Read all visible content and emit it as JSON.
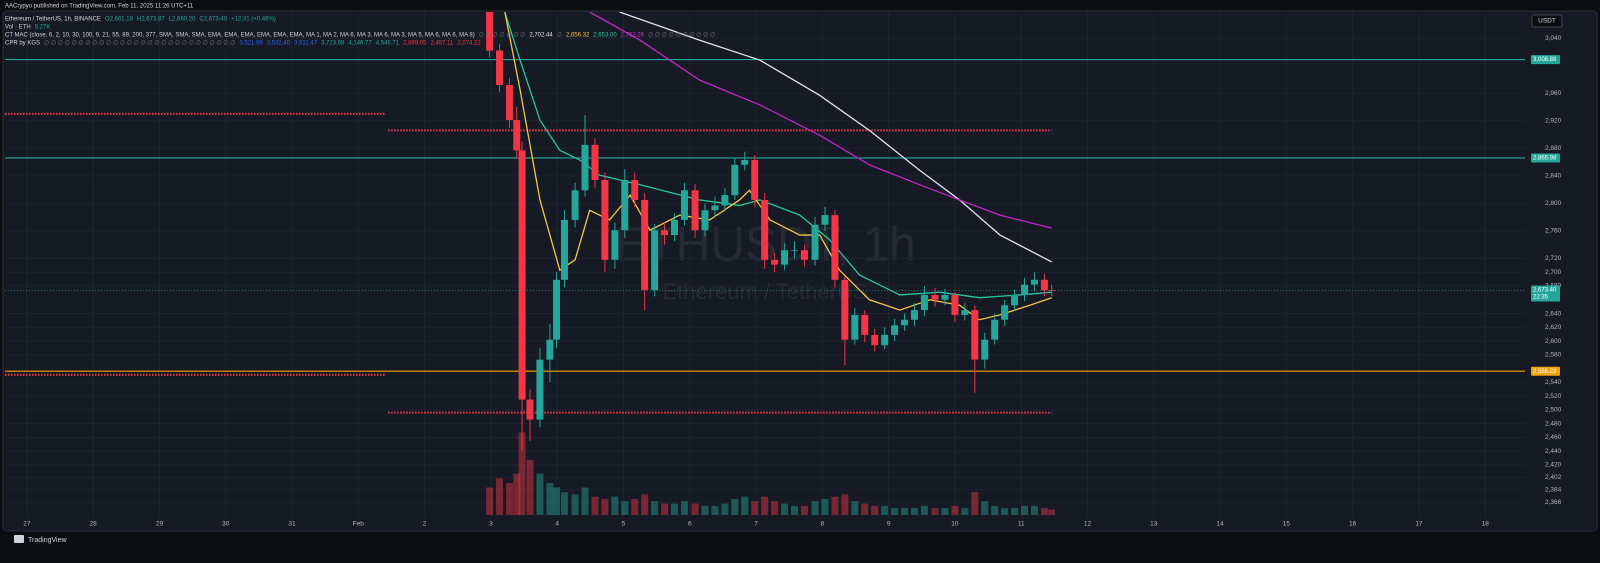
{
  "header": {
    "publisher": "AACrypyo published on TradingView.com, Feb 11, 2025 11:26 UTC+11"
  },
  "legend": [
    [
      {
        "text": "Ethereum / TetherUS, 1h, BINANCE",
        "color": "#d1d4dc"
      },
      {
        "text": "O2,661.19",
        "color": "#26a69a"
      },
      {
        "text": "H2,673.87",
        "color": "#26a69a"
      },
      {
        "text": "L2,660.20",
        "color": "#26a69a"
      },
      {
        "text": "C2,673.40",
        "color": "#26a69a"
      },
      {
        "text": "+12.31 (+0.46%)",
        "color": "#26a69a"
      }
    ],
    [
      {
        "text": "Vol · ETH",
        "color": "#d1d4dc"
      },
      {
        "text": "5.27K",
        "color": "#26a69a"
      }
    ],
    [
      {
        "text": "CT MAC (close, 6, 2, 10, 30, 100, 9, 21, 55, 89, 200, 377, SMA, SMA, SMA, EMA, EMA, EMA, EMA, EMA, EMA, MA 1, MA 2, MA 6, MA 3, MA 6, MA 3, MA 5, MA 6, MA 6, MA 8)",
        "color": "#d1d4dc"
      },
      {
        "text": "∅ ∅ ∅ ∅ ∅ ∅ ∅",
        "color": "#787b86"
      },
      {
        "text": "2,702.44",
        "color": "#e0e3eb"
      },
      {
        "text": "∅",
        "color": "#787b86"
      },
      {
        "text": "2,656.32",
        "color": "#f5c542"
      },
      {
        "text": "2,653.00",
        "color": "#26c6a0"
      },
      {
        "text": "2,752.26",
        "color": "#d62ad6"
      },
      {
        "text": "∅ ∅ ∅ ∅ ∅ ∅ ∅ ∅ ∅ ∅",
        "color": "#787b86"
      }
    ],
    [
      {
        "text": "CPR by KGS",
        "color": "#d1d4dc"
      },
      {
        "text": "∅ ∅ ∅ ∅ ∅ ∅ ∅ ∅ ∅ ∅ ∅ ∅ ∅ ∅ ∅ ∅ ∅ ∅ ∅ ∅ ∅ ∅ ∅ ∅ ∅ ∅ ∅ ∅",
        "color": "#787b86"
      },
      {
        "text": "3,521.96",
        "color": "#2962ff"
      },
      {
        "text": "3,532.40",
        "color": "#2962ff"
      },
      {
        "text": "3,511.47",
        "color": "#2962ff"
      },
      {
        "text": "3,723.68",
        "color": "#26a69a"
      },
      {
        "text": "4,146.77",
        "color": "#26a69a"
      },
      {
        "text": "4,546.71",
        "color": "#26a69a"
      },
      {
        "text": "2,899.05",
        "color": "#f23645"
      },
      {
        "text": "2,497.11",
        "color": "#f23645"
      },
      {
        "text": "2,074.22",
        "color": "#f23645"
      }
    ]
  ],
  "watermark": {
    "symbol": "ETHUSDT, 1h",
    "name": "Ethereum / TetherUS"
  },
  "footer": {
    "brand": "TradingView"
  },
  "chart_data": {
    "type": "candlestick",
    "currency": "USDT",
    "grid": true,
    "up_color": "#26a69a",
    "down_color": "#f23645",
    "x": [
      6.98,
      7.13,
      7.28,
      7.39,
      7.47,
      7.59,
      7.74,
      7.89,
      7.99,
      8.11,
      8.27,
      8.42,
      8.57,
      8.72,
      8.87,
      9.02,
      9.17,
      9.32,
      9.47,
      9.62,
      9.77,
      9.92,
      10.08,
      10.23,
      10.38,
      10.53,
      10.68,
      10.83,
      10.98,
      11.13,
      11.28,
      11.43,
      11.58,
      11.73,
      11.89,
      12.04,
      12.19,
      12.34,
      12.49,
      12.64,
      12.79,
      12.94,
      13.09,
      13.24,
      13.39,
      13.54,
      13.7,
      13.85,
      14.0,
      14.15,
      14.3,
      14.45,
      14.6,
      14.75,
      14.9,
      15.05,
      15.2,
      15.35,
      15.46
    ],
    "open": [
      3080,
      3022,
      2972,
      2921,
      2877,
      2515,
      2486,
      2573,
      2602,
      2689,
      2776,
      2819,
      2885,
      2834,
      2718,
      2761,
      2834,
      2805,
      2674,
      2761,
      2754,
      2776,
      2819,
      2761,
      2790,
      2797,
      2812,
      2856,
      2863,
      2805,
      2718,
      2711,
      2732,
      2732,
      2718,
      2769,
      2783,
      2689,
      2602,
      2638,
      2609,
      2594,
      2609,
      2623,
      2631,
      2645,
      2667,
      2660,
      2667,
      2638,
      2645,
      2573,
      2602,
      2631,
      2652,
      2667,
      2682,
      2689,
      2674
    ],
    "high": [
      3090,
      3032,
      2982,
      2940,
      2890,
      2530,
      2590,
      2625,
      2700,
      2790,
      2830,
      2928,
      2895,
      2845,
      2772,
      2850,
      2845,
      2815,
      2770,
      2772,
      2786,
      2830,
      2828,
      2800,
      2810,
      2822,
      2866,
      2875,
      2870,
      2815,
      2728,
      2742,
      2745,
      2740,
      2780,
      2795,
      2790,
      2695,
      2648,
      2645,
      2618,
      2620,
      2632,
      2640,
      2655,
      2680,
      2677,
      2676,
      2672,
      2655,
      2652,
      2612,
      2640,
      2660,
      2675,
      2692,
      2700,
      2698,
      2682
    ],
    "low": [
      3012,
      2962,
      2910,
      2865,
      2442,
      2455,
      2475,
      2540,
      2590,
      2678,
      2765,
      2810,
      2822,
      2700,
      2705,
      2750,
      2795,
      2645,
      2665,
      2740,
      2745,
      2768,
      2750,
      2752,
      2780,
      2788,
      2805,
      2848,
      2795,
      2705,
      2700,
      2703,
      2720,
      2708,
      2710,
      2760,
      2678,
      2565,
      2595,
      2598,
      2585,
      2588,
      2600,
      2615,
      2622,
      2636,
      2650,
      2652,
      2628,
      2630,
      2525,
      2560,
      2595,
      2622,
      2645,
      2658,
      2672,
      2665,
      2665
    ],
    "close": [
      3022,
      2972,
      2921,
      2877,
      2515,
      2486,
      2573,
      2602,
      2689,
      2776,
      2819,
      2885,
      2834,
      2718,
      2761,
      2834,
      2805,
      2674,
      2761,
      2754,
      2776,
      2819,
      2761,
      2790,
      2797,
      2812,
      2856,
      2863,
      2805,
      2718,
      2711,
      2732,
      2732,
      2718,
      2769,
      2783,
      2689,
      2602,
      2638,
      2609,
      2594,
      2609,
      2623,
      2631,
      2645,
      2667,
      2660,
      2667,
      2638,
      2645,
      2573,
      2602,
      2631,
      2652,
      2667,
      2682,
      2689,
      2674,
      2673.4
    ],
    "volume": [
      60,
      80,
      70,
      90,
      180,
      120,
      90,
      70,
      60,
      50,
      45,
      60,
      40,
      35,
      40,
      30,
      35,
      45,
      30,
      25,
      25,
      30,
      25,
      20,
      20,
      25,
      35,
      40,
      30,
      40,
      30,
      25,
      20,
      20,
      30,
      35,
      40,
      45,
      30,
      25,
      20,
      20,
      15,
      15,
      15,
      20,
      15,
      15,
      20,
      15,
      50,
      30,
      20,
      15,
      15,
      20,
      20,
      15,
      12
    ],
    "volume_lim": [
      0,
      240
    ],
    "xlim": [
      -0.33,
      22.6
    ],
    "xticks": [
      {
        "value": 0,
        "label": "27"
      },
      {
        "value": 1,
        "label": "28"
      },
      {
        "value": 2,
        "label": "29"
      },
      {
        "value": 3,
        "label": "30"
      },
      {
        "value": 4,
        "label": "31"
      },
      {
        "value": 5,
        "label": "Feb"
      },
      {
        "value": 6,
        "label": "2"
      },
      {
        "value": 7,
        "label": "3"
      },
      {
        "value": 8,
        "label": "4"
      },
      {
        "value": 9,
        "label": "5"
      },
      {
        "value": 10,
        "label": "6"
      },
      {
        "value": 11,
        "label": "7"
      },
      {
        "value": 12,
        "label": "8"
      },
      {
        "value": 13,
        "label": "9"
      },
      {
        "value": 14,
        "label": "10"
      },
      {
        "value": 15,
        "label": "11"
      },
      {
        "value": 16,
        "label": "12"
      },
      {
        "value": 17,
        "label": "13"
      },
      {
        "value": 18,
        "label": "14"
      },
      {
        "value": 19,
        "label": "15"
      },
      {
        "value": 20,
        "label": "16"
      },
      {
        "value": 21,
        "label": "17"
      },
      {
        "value": 22,
        "label": "18"
      }
    ],
    "ylim": [
      2343,
      3078
    ],
    "yticks": [
      {
        "value": 3040,
        "label": "3,040"
      },
      {
        "value": 2960,
        "label": "2,960"
      },
      {
        "value": 2920,
        "label": "2,920"
      },
      {
        "value": 2880,
        "label": "2,880"
      },
      {
        "value": 2840,
        "label": "2,840"
      },
      {
        "value": 2800,
        "label": "2,800"
      },
      {
        "value": 2760,
        "label": "2,760"
      },
      {
        "value": 2720,
        "label": "2,720"
      },
      {
        "value": 2700,
        "label": "2,700"
      },
      {
        "value": 2680,
        "label": "2,680"
      },
      {
        "value": 2640,
        "label": "2,640"
      },
      {
        "value": 2620,
        "label": "2,620"
      },
      {
        "value": 2600,
        "label": "2,600"
      },
      {
        "value": 2580,
        "label": "2,580"
      },
      {
        "value": 2540,
        "label": "2,540"
      },
      {
        "value": 2520,
        "label": "2,520"
      },
      {
        "value": 2500,
        "label": "2,500"
      },
      {
        "value": 2480,
        "label": "2,480"
      },
      {
        "value": 2460,
        "label": "2,460"
      },
      {
        "value": 2440,
        "label": "2,440"
      },
      {
        "value": 2420,
        "label": "2,420"
      },
      {
        "value": 2402,
        "label": "2,402"
      },
      {
        "value": 2384,
        "label": "2,384"
      },
      {
        "value": 2366,
        "label": "2,366"
      }
    ],
    "ma_lines": [
      {
        "color": "#e0e3eb",
        "x": [
          8.94,
          10.15,
          11.06,
          11.96,
          12.71,
          13.47,
          14.07,
          14.68,
          15.46
        ],
        "values": [
          3078,
          3037,
          3008,
          2957,
          2906,
          2848,
          2805,
          2754,
          2715
        ]
      },
      {
        "color": "#c427c4",
        "x": [
          8.49,
          9.25,
          10.15,
          11.06,
          11.96,
          12.71,
          13.47,
          14.07,
          14.68,
          15.46
        ],
        "values": [
          3078,
          3037,
          2979,
          2943,
          2899,
          2856,
          2827,
          2805,
          2783,
          2764
        ]
      },
      {
        "color": "#26c6a0",
        "x": [
          7.21,
          7.44,
          7.74,
          8.04,
          8.34,
          8.64,
          9.25,
          10.15,
          10.75,
          11.06,
          11.66,
          12.11,
          12.56,
          13.17,
          13.77,
          14.37,
          14.98,
          15.46
        ],
        "values": [
          3078,
          3008,
          2921,
          2877,
          2863,
          2841,
          2827,
          2805,
          2797,
          2805,
          2783,
          2747,
          2696,
          2667,
          2671,
          2663,
          2667,
          2671
        ]
      },
      {
        "color": "#f5c542",
        "x": [
          7.21,
          7.44,
          7.74,
          8.04,
          8.27,
          8.49,
          8.79,
          9.1,
          9.4,
          9.85,
          10.3,
          10.75,
          10.9,
          11.21,
          11.66,
          11.96,
          12.26,
          12.71,
          13.17,
          13.62,
          14.07,
          14.37,
          14.68,
          15.13,
          15.46
        ],
        "values": [
          3078,
          2965,
          2805,
          2703,
          2718,
          2790,
          2776,
          2812,
          2761,
          2783,
          2776,
          2805,
          2819,
          2776,
          2754,
          2754,
          2703,
          2660,
          2645,
          2660,
          2652,
          2631,
          2638,
          2652,
          2663
        ]
      }
    ],
    "levels": [
      {
        "value": 3008.88,
        "label": "3,008.88",
        "color": "#26a69a"
      },
      {
        "value": 2865.98,
        "label": "2,865.98",
        "color": "#26a69a"
      },
      {
        "value": 2556.23,
        "label": "2,556.23",
        "color": "#f0a30a"
      }
    ],
    "cpr": [
      {
        "x": [
          -0.33,
          5.4
        ],
        "value": 2930,
        "color": "#f23645"
      },
      {
        "x": [
          5.45,
          15.46
        ],
        "value": 2906,
        "color": "#f23645"
      },
      {
        "x": [
          -0.33,
          5.4
        ],
        "value": 2551,
        "color": "#f23645"
      },
      {
        "x": [
          5.45,
          15.46
        ],
        "value": 2496,
        "color": "#f23645"
      }
    ],
    "price_marker": {
      "value": 2673.4,
      "label": "2,673.40",
      "countdown": "22:35",
      "color": "#26a69a"
    }
  }
}
